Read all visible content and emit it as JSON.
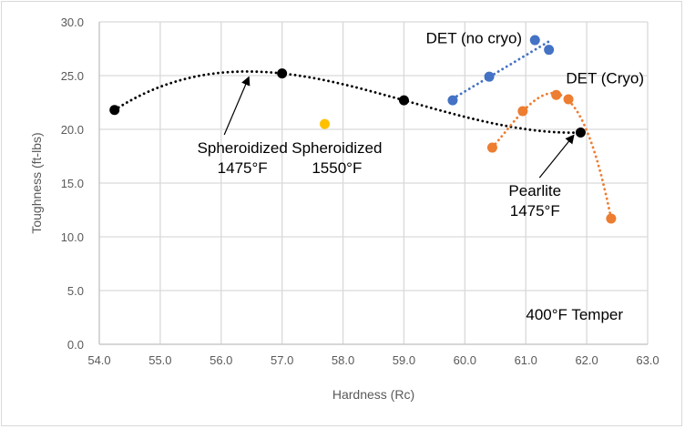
{
  "chart_data": {
    "type": "scatter",
    "title": "",
    "xlabel": "Hardness (Rc)",
    "ylabel": "Toughness (ft-lbs)",
    "xlim": [
      54.0,
      63.0
    ],
    "ylim": [
      0.0,
      30.0
    ],
    "x_ticks": [
      "54.0",
      "55.0",
      "56.0",
      "57.0",
      "58.0",
      "59.0",
      "60.0",
      "61.0",
      "62.0",
      "63.0"
    ],
    "y_ticks": [
      "0.0",
      "5.0",
      "10.0",
      "15.0",
      "20.0",
      "25.0",
      "30.0"
    ],
    "grid": true,
    "legend": "none",
    "series": [
      {
        "name": "Spheroidized 1475°F / Pearlite",
        "color": "#000000",
        "trendline": "dotted-polynomial",
        "points": [
          [
            54.25,
            21.8
          ],
          [
            57.0,
            25.2
          ],
          [
            59.0,
            22.7
          ],
          [
            61.9,
            19.7
          ]
        ]
      },
      {
        "name": "Spheroidized 1550°F",
        "color": "#FFC000",
        "trendline": "none",
        "points": [
          [
            57.7,
            20.5
          ]
        ]
      },
      {
        "name": "DET (no cryo)",
        "color": "#4472C4",
        "trendline": "dotted-linear",
        "points": [
          [
            59.8,
            22.7
          ],
          [
            60.4,
            24.9
          ],
          [
            61.15,
            28.3
          ],
          [
            61.38,
            27.4
          ]
        ]
      },
      {
        "name": "DET (Cryo)",
        "color": "#ED7D31",
        "trendline": "dotted-polynomial",
        "points": [
          [
            60.45,
            18.3
          ],
          [
            60.95,
            21.7
          ],
          [
            61.5,
            23.2
          ],
          [
            61.7,
            22.8
          ],
          [
            62.4,
            11.7
          ]
        ]
      }
    ],
    "annotations": [
      {
        "id": "spheroidized-1475",
        "lines": [
          "Spheroidized",
          "1475°F"
        ],
        "x": 56.35,
        "y": 17.8,
        "arrow_to": [
          56.45,
          24.8
        ]
      },
      {
        "id": "spheroidized-1550",
        "lines": [
          "Spheroidized",
          "1550°F"
        ],
        "x": 57.9,
        "y": 17.8
      },
      {
        "id": "det-no-cryo",
        "lines": [
          "DET (no cryo)"
        ],
        "x": 60.15,
        "y": 28.0
      },
      {
        "id": "det-cryo",
        "lines": [
          "DET (Cryo)"
        ],
        "x": 62.3,
        "y": 24.3
      },
      {
        "id": "pearlite-1475",
        "lines": [
          "Pearlite",
          "1475°F"
        ],
        "x": 61.15,
        "y": 13.8,
        "arrow_to": [
          61.78,
          19.4
        ]
      },
      {
        "id": "temper-note",
        "lines": [
          "400°F Temper"
        ],
        "x": 61.8,
        "y": 2.3
      }
    ]
  }
}
